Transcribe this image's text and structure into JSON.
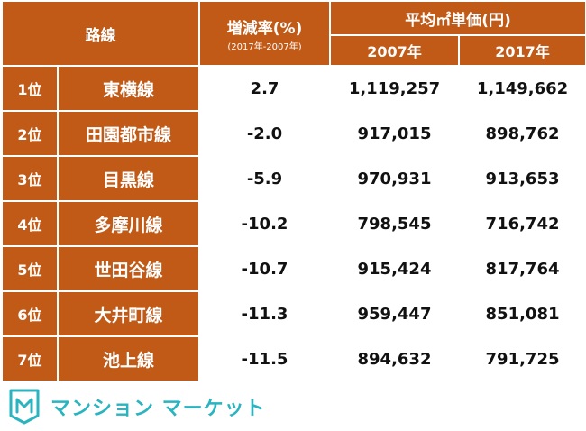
{
  "header": {
    "route": "路線",
    "change": "増減率(%)",
    "change_period": "(2017年-2007年)",
    "price": "平均㎡単価(円)",
    "year_2007": "2007年",
    "year_2017": "2017年"
  },
  "rows": [
    {
      "rank": "1位",
      "line": "東横線",
      "change": "2.7",
      "price_2007": "1,119,257",
      "price_2017": "1,149,662"
    },
    {
      "rank": "2位",
      "line": "田園都市線",
      "change": "-2.0",
      "price_2007": "917,015",
      "price_2017": "898,762"
    },
    {
      "rank": "3位",
      "line": "目黒線",
      "change": "-5.9",
      "price_2007": "970,931",
      "price_2017": "913,653"
    },
    {
      "rank": "4位",
      "line": "多摩川線",
      "change": "-10.2",
      "price_2007": "798,545",
      "price_2017": "716,742"
    },
    {
      "rank": "5位",
      "line": "世田谷線",
      "change": "-10.7",
      "price_2007": "915,424",
      "price_2017": "817,764"
    },
    {
      "rank": "6位",
      "line": "大井町線",
      "change": "-11.3",
      "price_2007": "959,447",
      "price_2017": "851,081"
    },
    {
      "rank": "7位",
      "line": "池上線",
      "change": "-11.5",
      "price_2007": "894,632",
      "price_2017": "791,725"
    }
  ],
  "brand": {
    "name": "マンション マーケット",
    "logo_letter": "M",
    "color": "#2bb3bf"
  },
  "colors": {
    "header_bg": "#c05a16",
    "header_text": "#ffffff"
  }
}
